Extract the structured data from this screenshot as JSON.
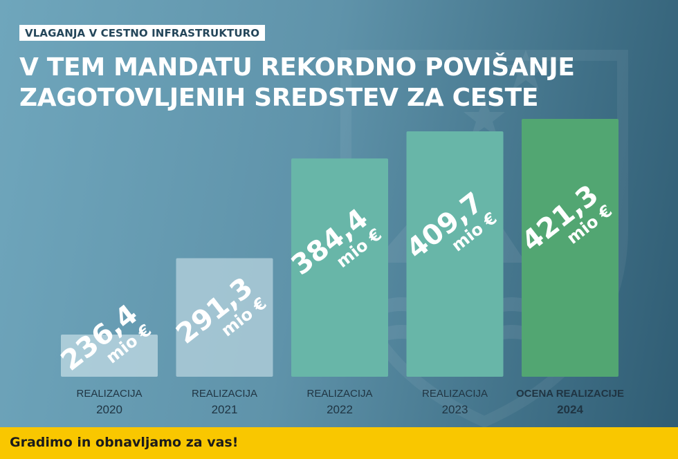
{
  "header": {
    "kicker": "VLAGANJA V CESTNO INFRASTRUKTURO",
    "title_lines": [
      "V TEM MANDATU REKORDNO POVIŠANJE",
      "ZAGOTOVLJENIH SREDSTEV ZA CESTE"
    ]
  },
  "chart_data": {
    "type": "bar",
    "title": "V TEM MANDATU REKORDNO POVIŠANJE ZAGOTOVLJENIH SREDSTEV ZA CESTE",
    "xlabel": "",
    "ylabel": "",
    "unit": "mio €",
    "grid": false,
    "ylim": [
      0,
      430
    ],
    "categories": [
      {
        "line1": "REALIZACIJA",
        "line2": "2020",
        "bold": false
      },
      {
        "line1": "REALIZACIJA",
        "line2": "2021",
        "bold": false
      },
      {
        "line1": "REALIZACIJA",
        "line2": "2022",
        "bold": false
      },
      {
        "line1": "REALIZACIJA",
        "line2": "2023",
        "bold": false
      },
      {
        "line1": "OCENA REALIZACIJE",
        "line2": "2024",
        "bold": true
      }
    ],
    "values": [
      236.4,
      291.3,
      384.4,
      409.7,
      421.3
    ],
    "value_labels": [
      "236,4",
      "291,3",
      "384,4",
      "409,7",
      "421,3"
    ],
    "colors": {
      "light_bars": "#b7d3de",
      "teal_bars": "#68b6a8",
      "highlight_bar": "#52a672",
      "category_text": "#1f3442"
    }
  },
  "footer": {
    "text": "Gradimo in obnavljamo za vas!",
    "color": "#f9c700"
  }
}
